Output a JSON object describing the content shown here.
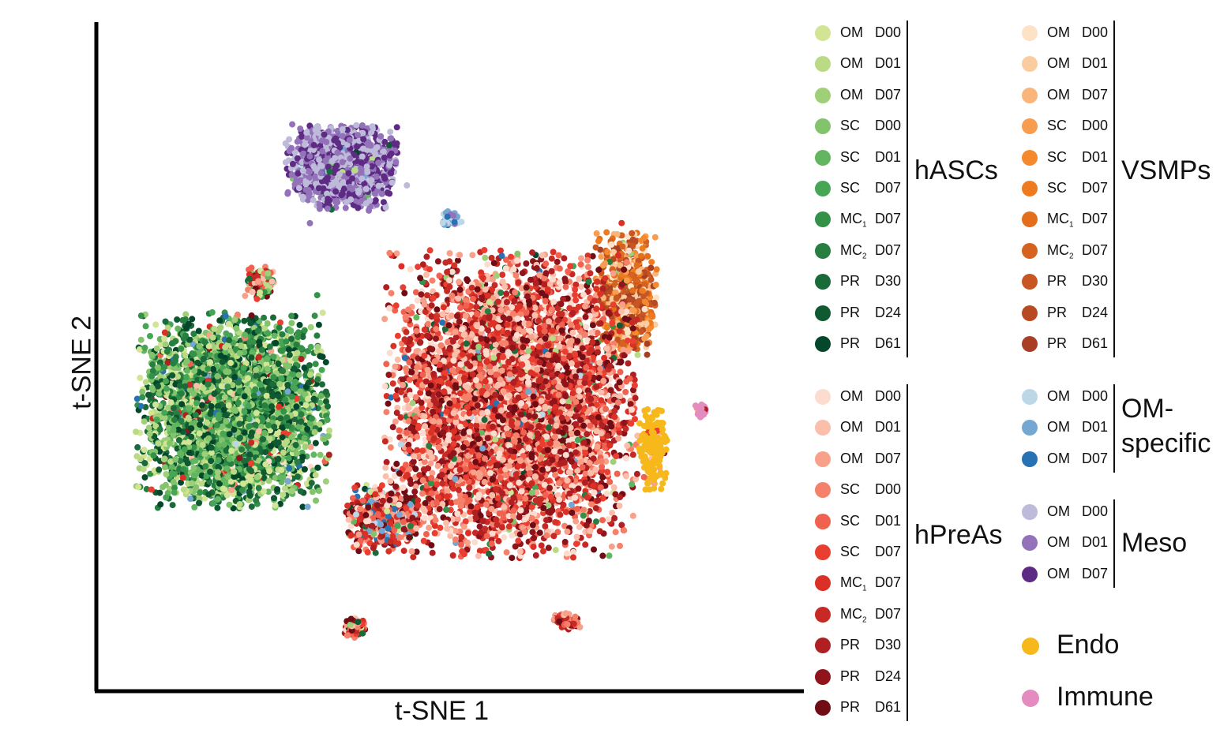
{
  "chart_data": {
    "type": "scatter",
    "xlabel": "t-SNE 1",
    "ylabel": "t-SNE 2",
    "xlim": [
      0,
      100
    ],
    "ylim": [
      0,
      100
    ],
    "grid": false,
    "legend_placement": "right",
    "groups": [
      {
        "label": "hASCs",
        "series": [
          {
            "source": "OM",
            "day": "D00",
            "color": "#d1e595"
          },
          {
            "source": "OM",
            "day": "D01",
            "color": "#bada86"
          },
          {
            "source": "OM",
            "day": "D07",
            "color": "#9fcf78"
          },
          {
            "source": "SC",
            "day": "D00",
            "color": "#82c46b"
          },
          {
            "source": "SC",
            "day": "D01",
            "color": "#62b660"
          },
          {
            "source": "SC",
            "day": "D07",
            "color": "#47a556"
          },
          {
            "source": "MC",
            "sub": "1",
            "day": "D07",
            "color": "#339148"
          },
          {
            "source": "MC",
            "sub": "2",
            "day": "D07",
            "color": "#267e41"
          },
          {
            "source": "PR",
            "day": "D30",
            "color": "#1b6a39"
          },
          {
            "source": "PR",
            "day": "D24",
            "color": "#0f5a30"
          },
          {
            "source": "PR",
            "day": "D61",
            "color": "#05472a"
          }
        ]
      },
      {
        "label": "VSMPs",
        "series": [
          {
            "source": "OM",
            "day": "D00",
            "color": "#fde2c6"
          },
          {
            "source": "OM",
            "day": "D01",
            "color": "#fbcc9f"
          },
          {
            "source": "OM",
            "day": "D07",
            "color": "#f9b57b"
          },
          {
            "source": "SC",
            "day": "D00",
            "color": "#f89d4f"
          },
          {
            "source": "SC",
            "day": "D01",
            "color": "#f4892e"
          },
          {
            "source": "SC",
            "day": "D07",
            "color": "#ee7b1f"
          },
          {
            "source": "MC",
            "sub": "1",
            "day": "D07",
            "color": "#e36f1c"
          },
          {
            "source": "MC",
            "sub": "2",
            "day": "D07",
            "color": "#d5621f"
          },
          {
            "source": "PR",
            "day": "D30",
            "color": "#c75622"
          },
          {
            "source": "PR",
            "day": "D24",
            "color": "#b84a23"
          },
          {
            "source": "PR",
            "day": "D61",
            "color": "#a83e23"
          }
        ]
      },
      {
        "label": "hPreAs",
        "series": [
          {
            "source": "OM",
            "day": "D00",
            "color": "#fddcd0"
          },
          {
            "source": "OM",
            "day": "D01",
            "color": "#fbbeab"
          },
          {
            "source": "OM",
            "day": "D07",
            "color": "#f9a08a"
          },
          {
            "source": "SC",
            "day": "D00",
            "color": "#f6816b"
          },
          {
            "source": "SC",
            "day": "D01",
            "color": "#f16150"
          },
          {
            "source": "SC",
            "day": "D07",
            "color": "#ea3e31"
          },
          {
            "source": "MC",
            "sub": "1",
            "day": "D07",
            "color": "#db3026"
          },
          {
            "source": "MC",
            "sub": "2",
            "day": "D07",
            "color": "#c72a25"
          },
          {
            "source": "PR",
            "day": "D30",
            "color": "#b01f21"
          },
          {
            "source": "PR",
            "day": "D24",
            "color": "#8f141b"
          },
          {
            "source": "PR",
            "day": "D61",
            "color": "#6f0c14"
          }
        ]
      },
      {
        "label": "OM-\nspecific",
        "series": [
          {
            "source": "OM",
            "day": "D00",
            "color": "#bdd7e9"
          },
          {
            "source": "OM",
            "day": "D01",
            "color": "#74a7d2"
          },
          {
            "source": "OM",
            "day": "D07",
            "color": "#2872b3"
          }
        ]
      },
      {
        "label": "Meso",
        "series": [
          {
            "source": "OM",
            "day": "D00",
            "color": "#bebad9"
          },
          {
            "source": "OM",
            "day": "D01",
            "color": "#9472ba"
          },
          {
            "source": "OM",
            "day": "D07",
            "color": "#5e2b84"
          }
        ]
      }
    ],
    "extra_series": [
      {
        "name": "Endo",
        "color": "#f6b81a"
      },
      {
        "name": "Immune",
        "color": "#e48cbf"
      }
    ],
    "clusters": [
      {
        "group": "Meso",
        "center": [
          34,
          80
        ],
        "spread": [
          7.5,
          6.2
        ],
        "count": 1400,
        "mix": {
          "Meso": 0.97,
          "OM-specific": 0.01,
          "hASCs": 0.02
        }
      },
      {
        "group": "VSMPs",
        "center": [
          76,
          60
        ],
        "spread": [
          4.2,
          9
        ],
        "count": 700,
        "mix": {
          "VSMPs": 0.97,
          "hASCs": 0.03
        }
      },
      {
        "group": "hPreAs",
        "center": [
          59,
          43
        ],
        "spread": [
          17,
          22
        ],
        "count": 5200,
        "mix": {
          "hPreAs": 0.95,
          "hASCs": 0.04,
          "OM-specific": 0.01
        }
      },
      {
        "group": "hASCs",
        "center": [
          18,
          42
        ],
        "spread": [
          13,
          14
        ],
        "count": 3600,
        "mix": {
          "hASCs": 0.94,
          "hPreAs": 0.04,
          "OM-specific": 0.02
        }
      },
      {
        "group": "hPreAs",
        "center": [
          40,
          25
        ],
        "spread": [
          5,
          5
        ],
        "count": 500,
        "mix": {
          "hPreAs": 0.8,
          "OM-specific": 0.1,
          "hASCs": 0.1
        }
      },
      {
        "group": "OM-specific",
        "center": [
          50,
          72
        ],
        "spread": [
          1.3,
          1.2
        ],
        "count": 60,
        "mix": {
          "OM-specific": 0.9,
          "Meso": 0.1
        }
      },
      {
        "group": "Endo",
        "center": [
          80,
          36
        ],
        "spread": [
          2.0,
          6.0
        ],
        "count": 180,
        "mix": {
          "Endo": 0.95,
          "hPreAs": 0.05
        }
      },
      {
        "group": "Immune",
        "center": [
          87,
          42
        ],
        "spread": [
          0.8,
          1.0
        ],
        "count": 30,
        "mix": {
          "Immune": 0.9,
          "hPreAs": 0.1
        }
      },
      {
        "group": "hPreAs",
        "center": [
          36,
          8
        ],
        "spread": [
          1.5,
          1.5
        ],
        "count": 90,
        "mix": {
          "hPreAs": 0.85,
          "hASCs": 0.15
        }
      },
      {
        "group": "hPreAs",
        "center": [
          67,
          9
        ],
        "spread": [
          2.0,
          1.2
        ],
        "count": 70,
        "mix": {
          "hPreAs": 1.0
        }
      },
      {
        "group": "hPreAs",
        "center": [
          22,
          62
        ],
        "spread": [
          2.0,
          2.5
        ],
        "count": 110,
        "mix": {
          "hPreAs": 0.6,
          "hASCs": 0.4
        }
      }
    ]
  }
}
